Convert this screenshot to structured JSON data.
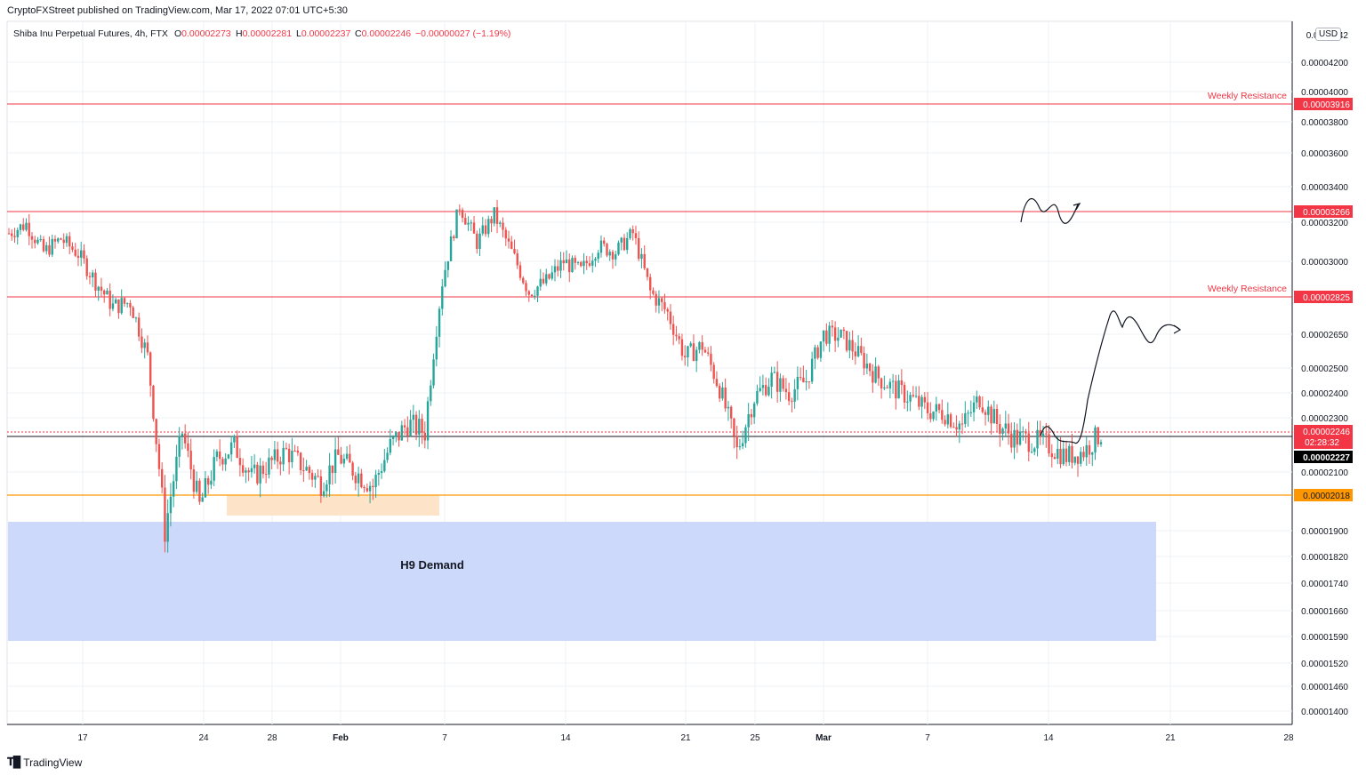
{
  "header": {
    "published": "CryptoFXStreet published on TradingView.com, Mar 17, 2022 07:01 UTC+5:30",
    "currency": "USD",
    "brand": "TradingView"
  },
  "chart_data": {
    "type": "candlestick",
    "symbol": "Shiba Inu Perpetual Futures, 4h, FTX",
    "ohlc_label": {
      "o_key": "O",
      "o": "0.00002273",
      "h_key": "H",
      "h": "0.00002281",
      "l_key": "L",
      "l": "0.00002237",
      "c_key": "C",
      "c": "0.00002246",
      "chg": "−0.00000027 (−1.19%)"
    },
    "x_ticks": [
      "17",
      "24",
      "28",
      "Feb",
      "7",
      "14",
      "21",
      "25",
      "Mar",
      "7",
      "14",
      "21",
      "28"
    ],
    "y_ticks": [
      "0.0000042",
      "0.00004200",
      "0.00004000",
      "0.00003800",
      "0.00003600",
      "0.00003400",
      "0.00003200",
      "0.00003000",
      "0.00002650",
      "0.00002500",
      "0.00002400",
      "0.00002300",
      "0.00002100",
      "0.00001900",
      "0.00001820",
      "0.00001740",
      "0.00001660",
      "0.00001590",
      "0.00001520",
      "0.00001460",
      "0.00001400"
    ],
    "horizontal_levels": [
      {
        "label": "Weekly Resistance",
        "value": "0.00003916",
        "color": "#f23645"
      },
      {
        "label": "",
        "value": "0.00003266",
        "color": "#f23645"
      },
      {
        "label": "Weekly Resistance",
        "value": "0.00002825",
        "color": "#f23645"
      },
      {
        "label": "",
        "value": "0.00002018",
        "color": "#ff9800"
      }
    ],
    "current_price": {
      "value": "0.00002246",
      "countdown": "02:28:32",
      "color": "#f23645"
    },
    "crosshair_price": {
      "value": "0.00002227",
      "color": "#000000"
    },
    "zones": [
      {
        "label": "H9 Demand",
        "top": 1.94e-05,
        "bottom": 1.58e-05,
        "color": "#cdd9fb"
      },
      {
        "label": "",
        "top": 2.015e-05,
        "bottom": 1.965e-05,
        "color": "#fde4c8"
      }
    ],
    "close_path": [
      {
        "x": "Jan 13",
        "y": 3.15e-05
      },
      {
        "x": "Jan 14",
        "y": 3.2e-05
      },
      {
        "x": "Jan 15",
        "y": 3.05e-05
      },
      {
        "x": "Jan 16",
        "y": 3.12e-05
      },
      {
        "x": "Jan 17",
        "y": 3.04e-05
      },
      {
        "x": "Jan 18",
        "y": 2.9e-05
      },
      {
        "x": "Jan 19",
        "y": 2.78e-05
      },
      {
        "x": "Jan 20",
        "y": 2.8e-05
      },
      {
        "x": "Jan 21",
        "y": 2.55e-05
      },
      {
        "x": "Jan 22",
        "y": 1.9e-05
      },
      {
        "x": "Jan 23",
        "y": 2.25e-05
      },
      {
        "x": "Jan 24",
        "y": 1.98e-05
      },
      {
        "x": "Jan 25",
        "y": 2.15e-05
      },
      {
        "x": "Jan 26",
        "y": 2.2e-05
      },
      {
        "x": "Jan 27",
        "y": 2.08e-05
      },
      {
        "x": "Jan 28",
        "y": 2.13e-05
      },
      {
        "x": "Jan 29",
        "y": 2.18e-05
      },
      {
        "x": "Jan 30",
        "y": 2.12e-05
      },
      {
        "x": "Jan 31",
        "y": 2.06e-05
      },
      {
        "x": "Feb 1",
        "y": 2.16e-05
      },
      {
        "x": "Feb 2",
        "y": 2.1e-05
      },
      {
        "x": "Feb 3",
        "y": 2.05e-05
      },
      {
        "x": "Feb 4",
        "y": 2.2e-05
      },
      {
        "x": "Feb 5",
        "y": 2.28e-05
      },
      {
        "x": "Feb 6",
        "y": 2.25e-05
      },
      {
        "x": "Feb 7",
        "y": 2.9e-05
      },
      {
        "x": "Feb 8",
        "y": 3.3e-05
      },
      {
        "x": "Feb 9",
        "y": 3.1e-05
      },
      {
        "x": "Feb 10",
        "y": 3.25e-05
      },
      {
        "x": "Feb 11",
        "y": 3.05e-05
      },
      {
        "x": "Feb 12",
        "y": 2.85e-05
      },
      {
        "x": "Feb 13",
        "y": 2.9e-05
      },
      {
        "x": "Feb 14",
        "y": 3e-05
      },
      {
        "x": "Feb 15",
        "y": 2.95e-05
      },
      {
        "x": "Feb 16",
        "y": 3.08e-05
      },
      {
        "x": "Feb 17",
        "y": 3.05e-05
      },
      {
        "x": "Feb 18",
        "y": 3.15e-05
      },
      {
        "x": "Feb 19",
        "y": 2.85e-05
      },
      {
        "x": "Feb 20",
        "y": 2.75e-05
      },
      {
        "x": "Feb 21",
        "y": 2.55e-05
      },
      {
        "x": "Feb 22",
        "y": 2.6e-05
      },
      {
        "x": "Feb 23",
        "y": 2.42e-05
      },
      {
        "x": "Feb 24",
        "y": 2.18e-05
      },
      {
        "x": "Feb 25",
        "y": 2.38e-05
      },
      {
        "x": "Feb 26",
        "y": 2.46e-05
      },
      {
        "x": "Feb 27",
        "y": 2.4e-05
      },
      {
        "x": "Feb 28",
        "y": 2.45e-05
      },
      {
        "x": "Mar 1",
        "y": 2.65e-05
      },
      {
        "x": "Mar 2",
        "y": 2.64e-05
      },
      {
        "x": "Mar 3",
        "y": 2.56e-05
      },
      {
        "x": "Mar 4",
        "y": 2.47e-05
      },
      {
        "x": "Mar 5",
        "y": 2.42e-05
      },
      {
        "x": "Mar 6",
        "y": 2.38e-05
      },
      {
        "x": "Mar 7",
        "y": 2.33e-05
      },
      {
        "x": "Mar 8",
        "y": 2.32e-05
      },
      {
        "x": "Mar 9",
        "y": 2.27e-05
      },
      {
        "x": "Mar 10",
        "y": 2.38e-05
      },
      {
        "x": "Mar 11",
        "y": 2.28e-05
      },
      {
        "x": "Mar 12",
        "y": 2.23e-05
      },
      {
        "x": "Mar 13",
        "y": 2.22e-05
      },
      {
        "x": "Mar 14",
        "y": 2.2e-05
      },
      {
        "x": "Mar 15",
        "y": 2.16e-05
      },
      {
        "x": "Mar 16",
        "y": 2.18e-05
      },
      {
        "x": "Mar 17",
        "y": 2.246e-05
      }
    ]
  }
}
